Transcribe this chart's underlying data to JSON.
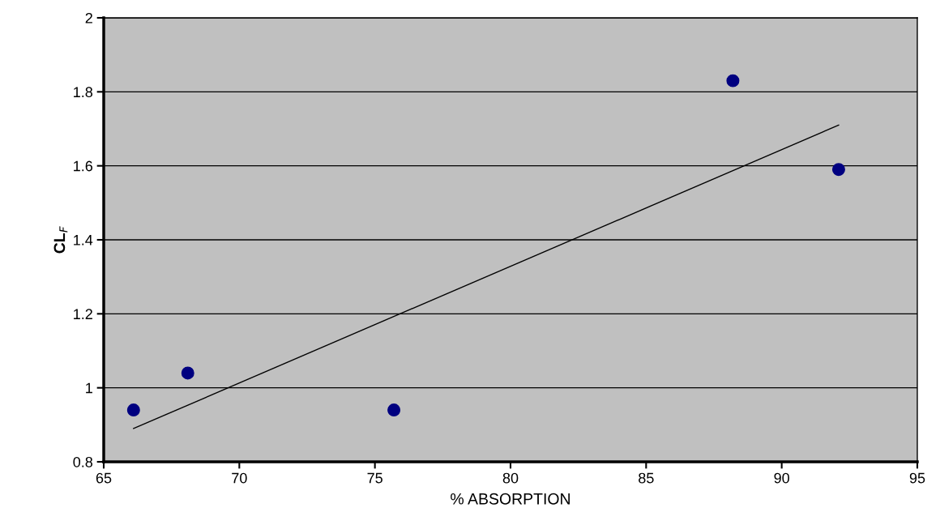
{
  "chart_data": {
    "type": "scatter",
    "xlabel": "% ABSORPTION",
    "ylabel": "CL$_{F}$",
    "xlim": [
      65,
      95
    ],
    "xticks": [
      65,
      70,
      75,
      80,
      85,
      90,
      95
    ],
    "ylim": [
      0.8,
      2
    ],
    "yticks": [
      0.8,
      1,
      1.2,
      1.4,
      1.6,
      1.8,
      2
    ],
    "grid": "y",
    "series": [
      {
        "marker": "circle",
        "color": "#000080",
        "x": [
          66.1,
          68.1,
          75.7,
          88.2,
          92.1
        ],
        "values": [
          0.94,
          1.04,
          0.94,
          1.83,
          1.59
        ]
      },
      {
        "type": "line",
        "color": "#000000",
        "x": [
          66.1,
          92.1
        ],
        "values": [
          0.89,
          1.71
        ]
      }
    ]
  }
}
